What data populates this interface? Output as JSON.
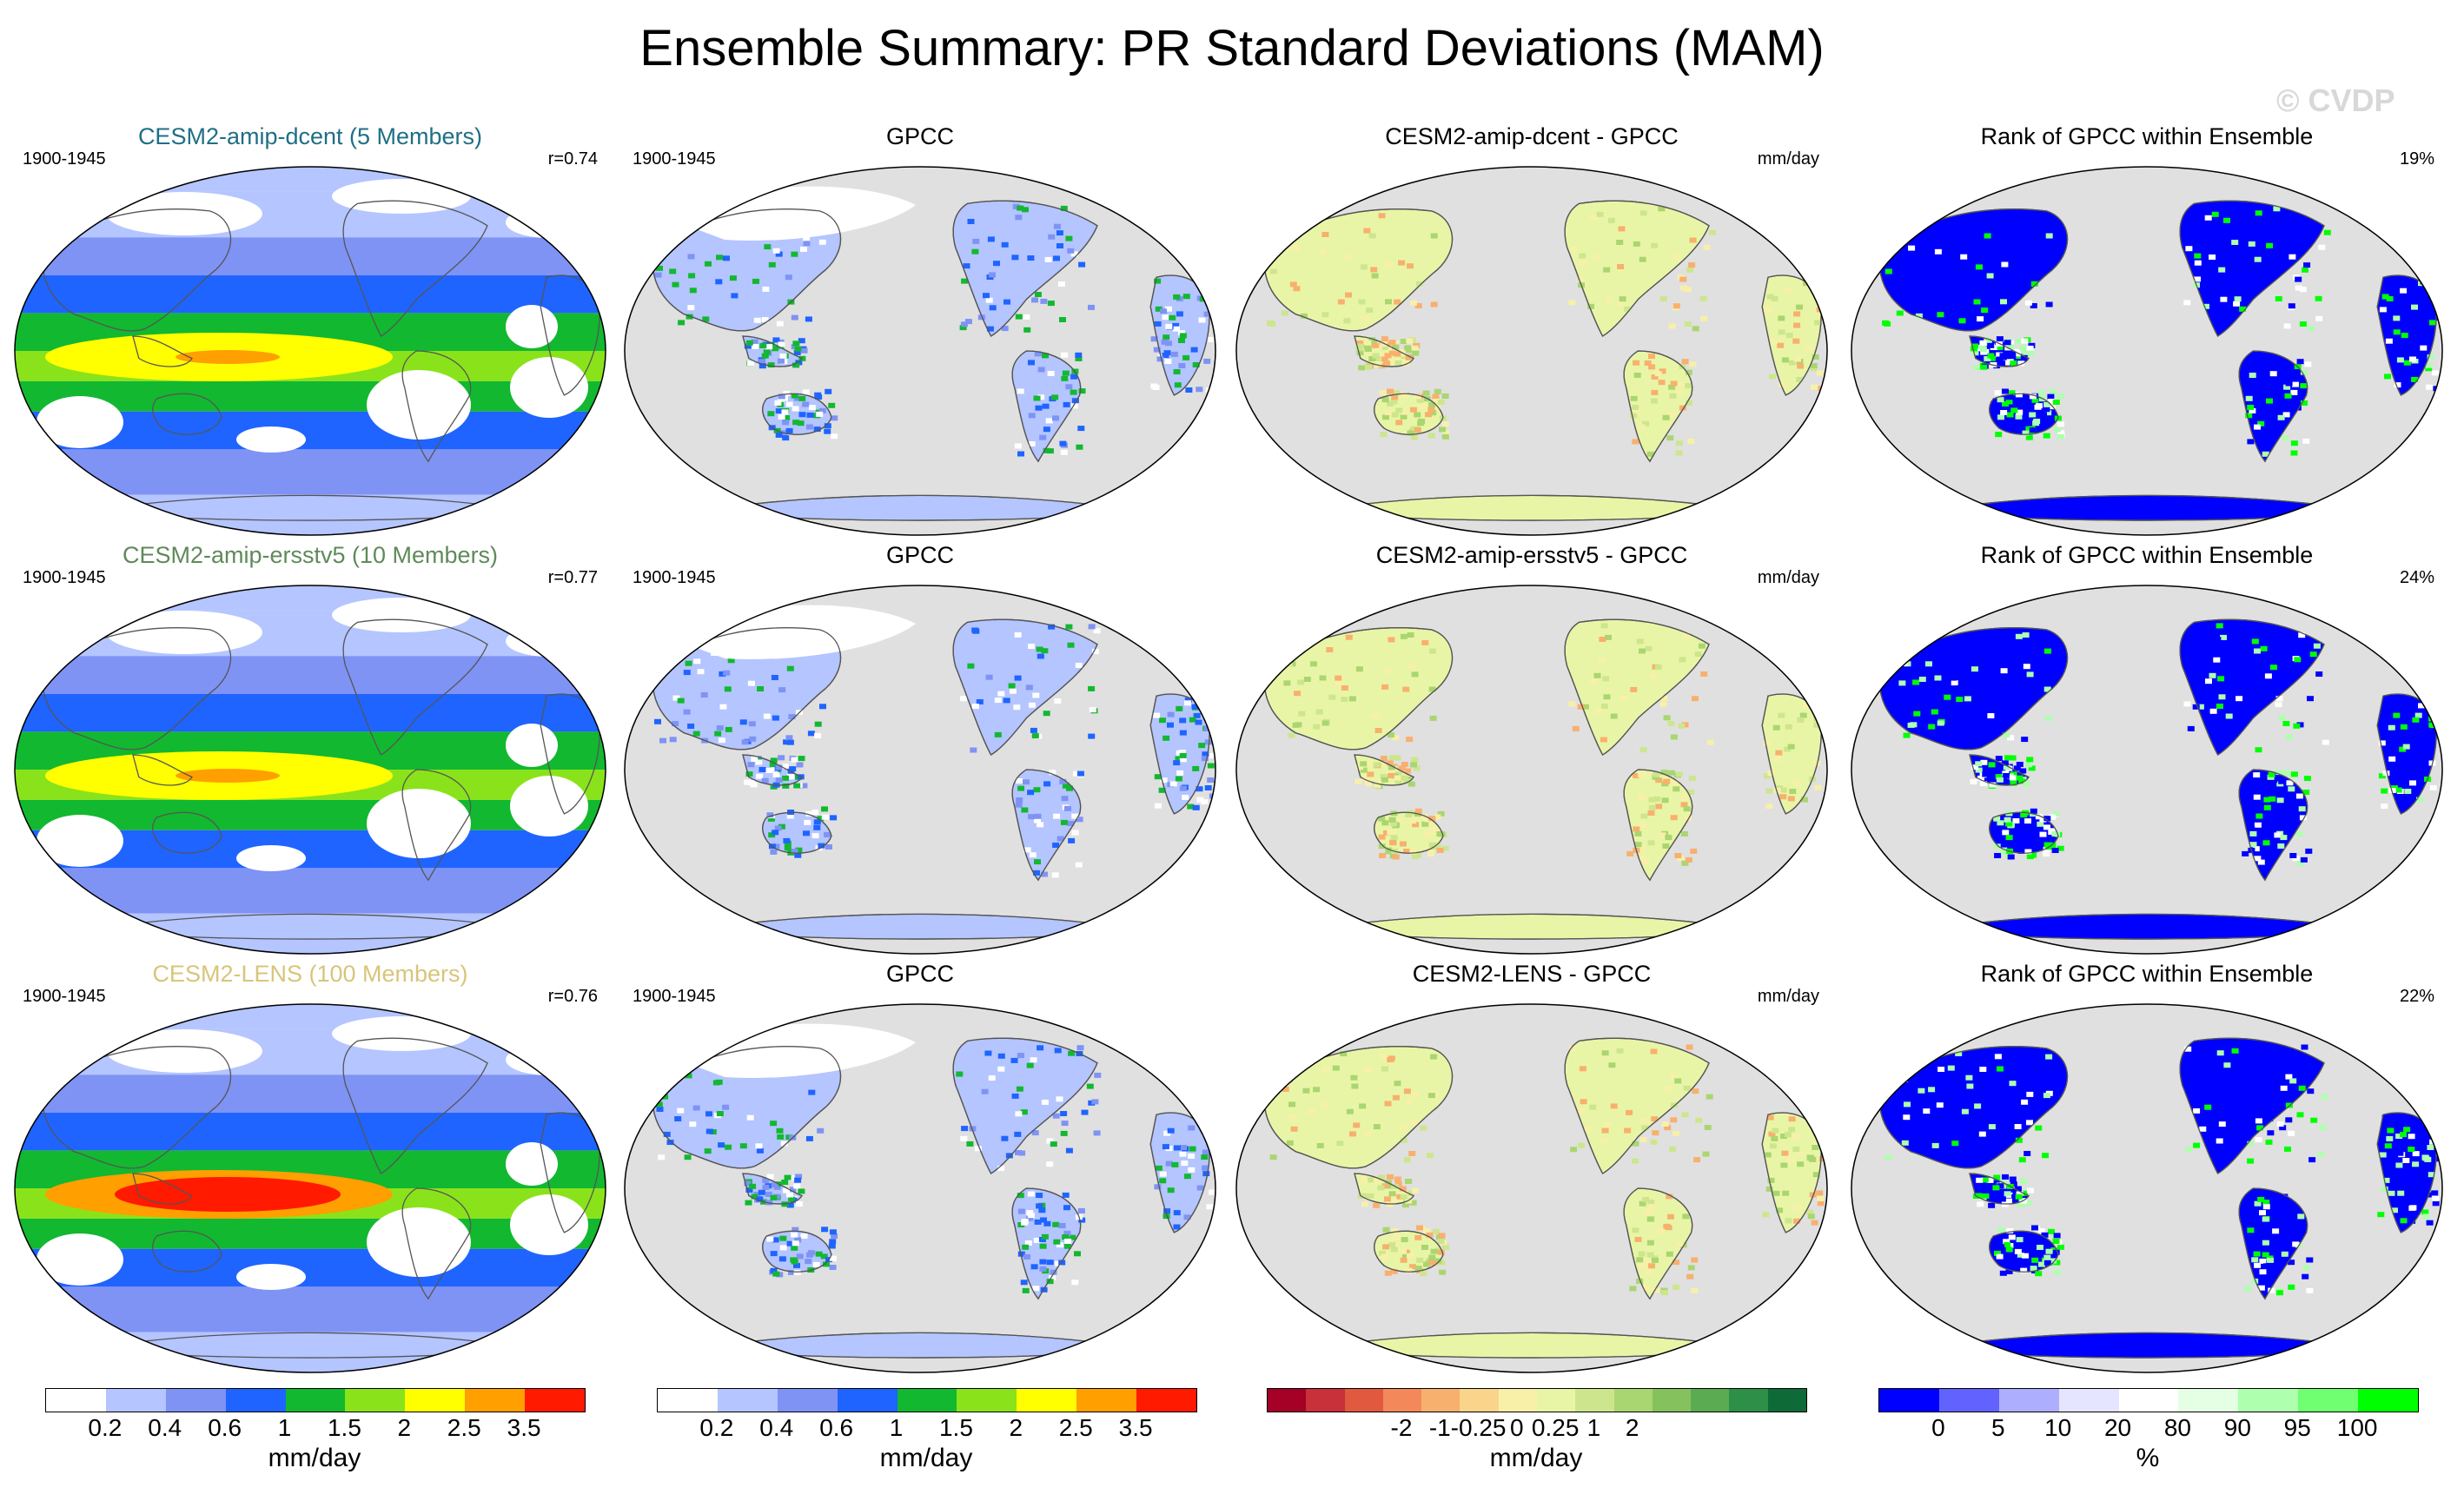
{
  "title": "Ensemble Summary: PR Standard Deviations (MAM)",
  "watermark": "© CVDP",
  "rows": [
    {
      "model": {
        "title": "CESM2-amip-dcent (5 Members)",
        "title_color": "#1f6f86",
        "period": "1900-1945",
        "corr": "r=0.74"
      },
      "obs": {
        "title": "GPCC",
        "period": "1900-1945"
      },
      "diff": {
        "title": "CESM2-amip-dcent - GPCC",
        "unit": "mm/day"
      },
      "rank": {
        "title": "Rank of GPCC within Ensemble",
        "pct": "19%"
      }
    },
    {
      "model": {
        "title": "CESM2-amip-ersstv5 (10 Members)",
        "title_color": "#5f8a5a",
        "period": "1900-1945",
        "corr": "r=0.77"
      },
      "obs": {
        "title": "GPCC",
        "period": "1900-1945"
      },
      "diff": {
        "title": "CESM2-amip-ersstv5 - GPCC",
        "unit": "mm/day"
      },
      "rank": {
        "title": "Rank of GPCC within Ensemble",
        "pct": "24%"
      }
    },
    {
      "model": {
        "title": "CESM2-LENS (100 Members)",
        "title_color": "#d8c57a",
        "period": "1900-1945",
        "corr": "r=0.76"
      },
      "obs": {
        "title": "GPCC",
        "period": "1900-1945"
      },
      "diff": {
        "title": "CESM2-LENS - GPCC",
        "unit": "mm/day"
      },
      "rank": {
        "title": "Rank of GPCC within Ensemble",
        "pct": "22%"
      }
    }
  ],
  "colorbars": {
    "stddev1": {
      "colors": [
        "#ffffff",
        "#b4c5ff",
        "#7f93f4",
        "#1f64ff",
        "#12b830",
        "#8ae31a",
        "#ffff00",
        "#ff9f00",
        "#ff1a00"
      ],
      "labels": [
        "0.2",
        "0.4",
        "0.6",
        "1",
        "1.5",
        "2",
        "2.5",
        "3.5"
      ],
      "unit": "mm/day"
    },
    "stddev2": {
      "colors": [
        "#ffffff",
        "#b4c5ff",
        "#7f93f4",
        "#1f64ff",
        "#12b830",
        "#8ae31a",
        "#ffff00",
        "#ff9f00",
        "#ff1a00"
      ],
      "labels": [
        "0.2",
        "0.4",
        "0.6",
        "1",
        "1.5",
        "2",
        "2.5",
        "3.5"
      ],
      "unit": "mm/day"
    },
    "difference": {
      "colors": [
        "#a50026",
        "#c8303a",
        "#e15a3f",
        "#f3895a",
        "#f8b06e",
        "#fad48a",
        "#f8f0a8",
        "#e9f5a6",
        "#cde68d",
        "#a9d670",
        "#85c25e",
        "#5aab52",
        "#2e8f48",
        "#0e6b37"
      ],
      "labels": [
        "-2",
        "-1",
        "-0.25",
        "0",
        "0.25",
        "1",
        "2"
      ],
      "unit": "mm/day"
    },
    "rank": {
      "colors": [
        "#0000ff",
        "#6262ff",
        "#aeaeff",
        "#e5e5ff",
        "#ffffff",
        "#e5ffe5",
        "#aeffae",
        "#70ff70",
        "#00ff00"
      ],
      "labels": [
        "0",
        "5",
        "10",
        "20",
        "80",
        "90",
        "95",
        "100"
      ],
      "unit": "%"
    }
  }
}
